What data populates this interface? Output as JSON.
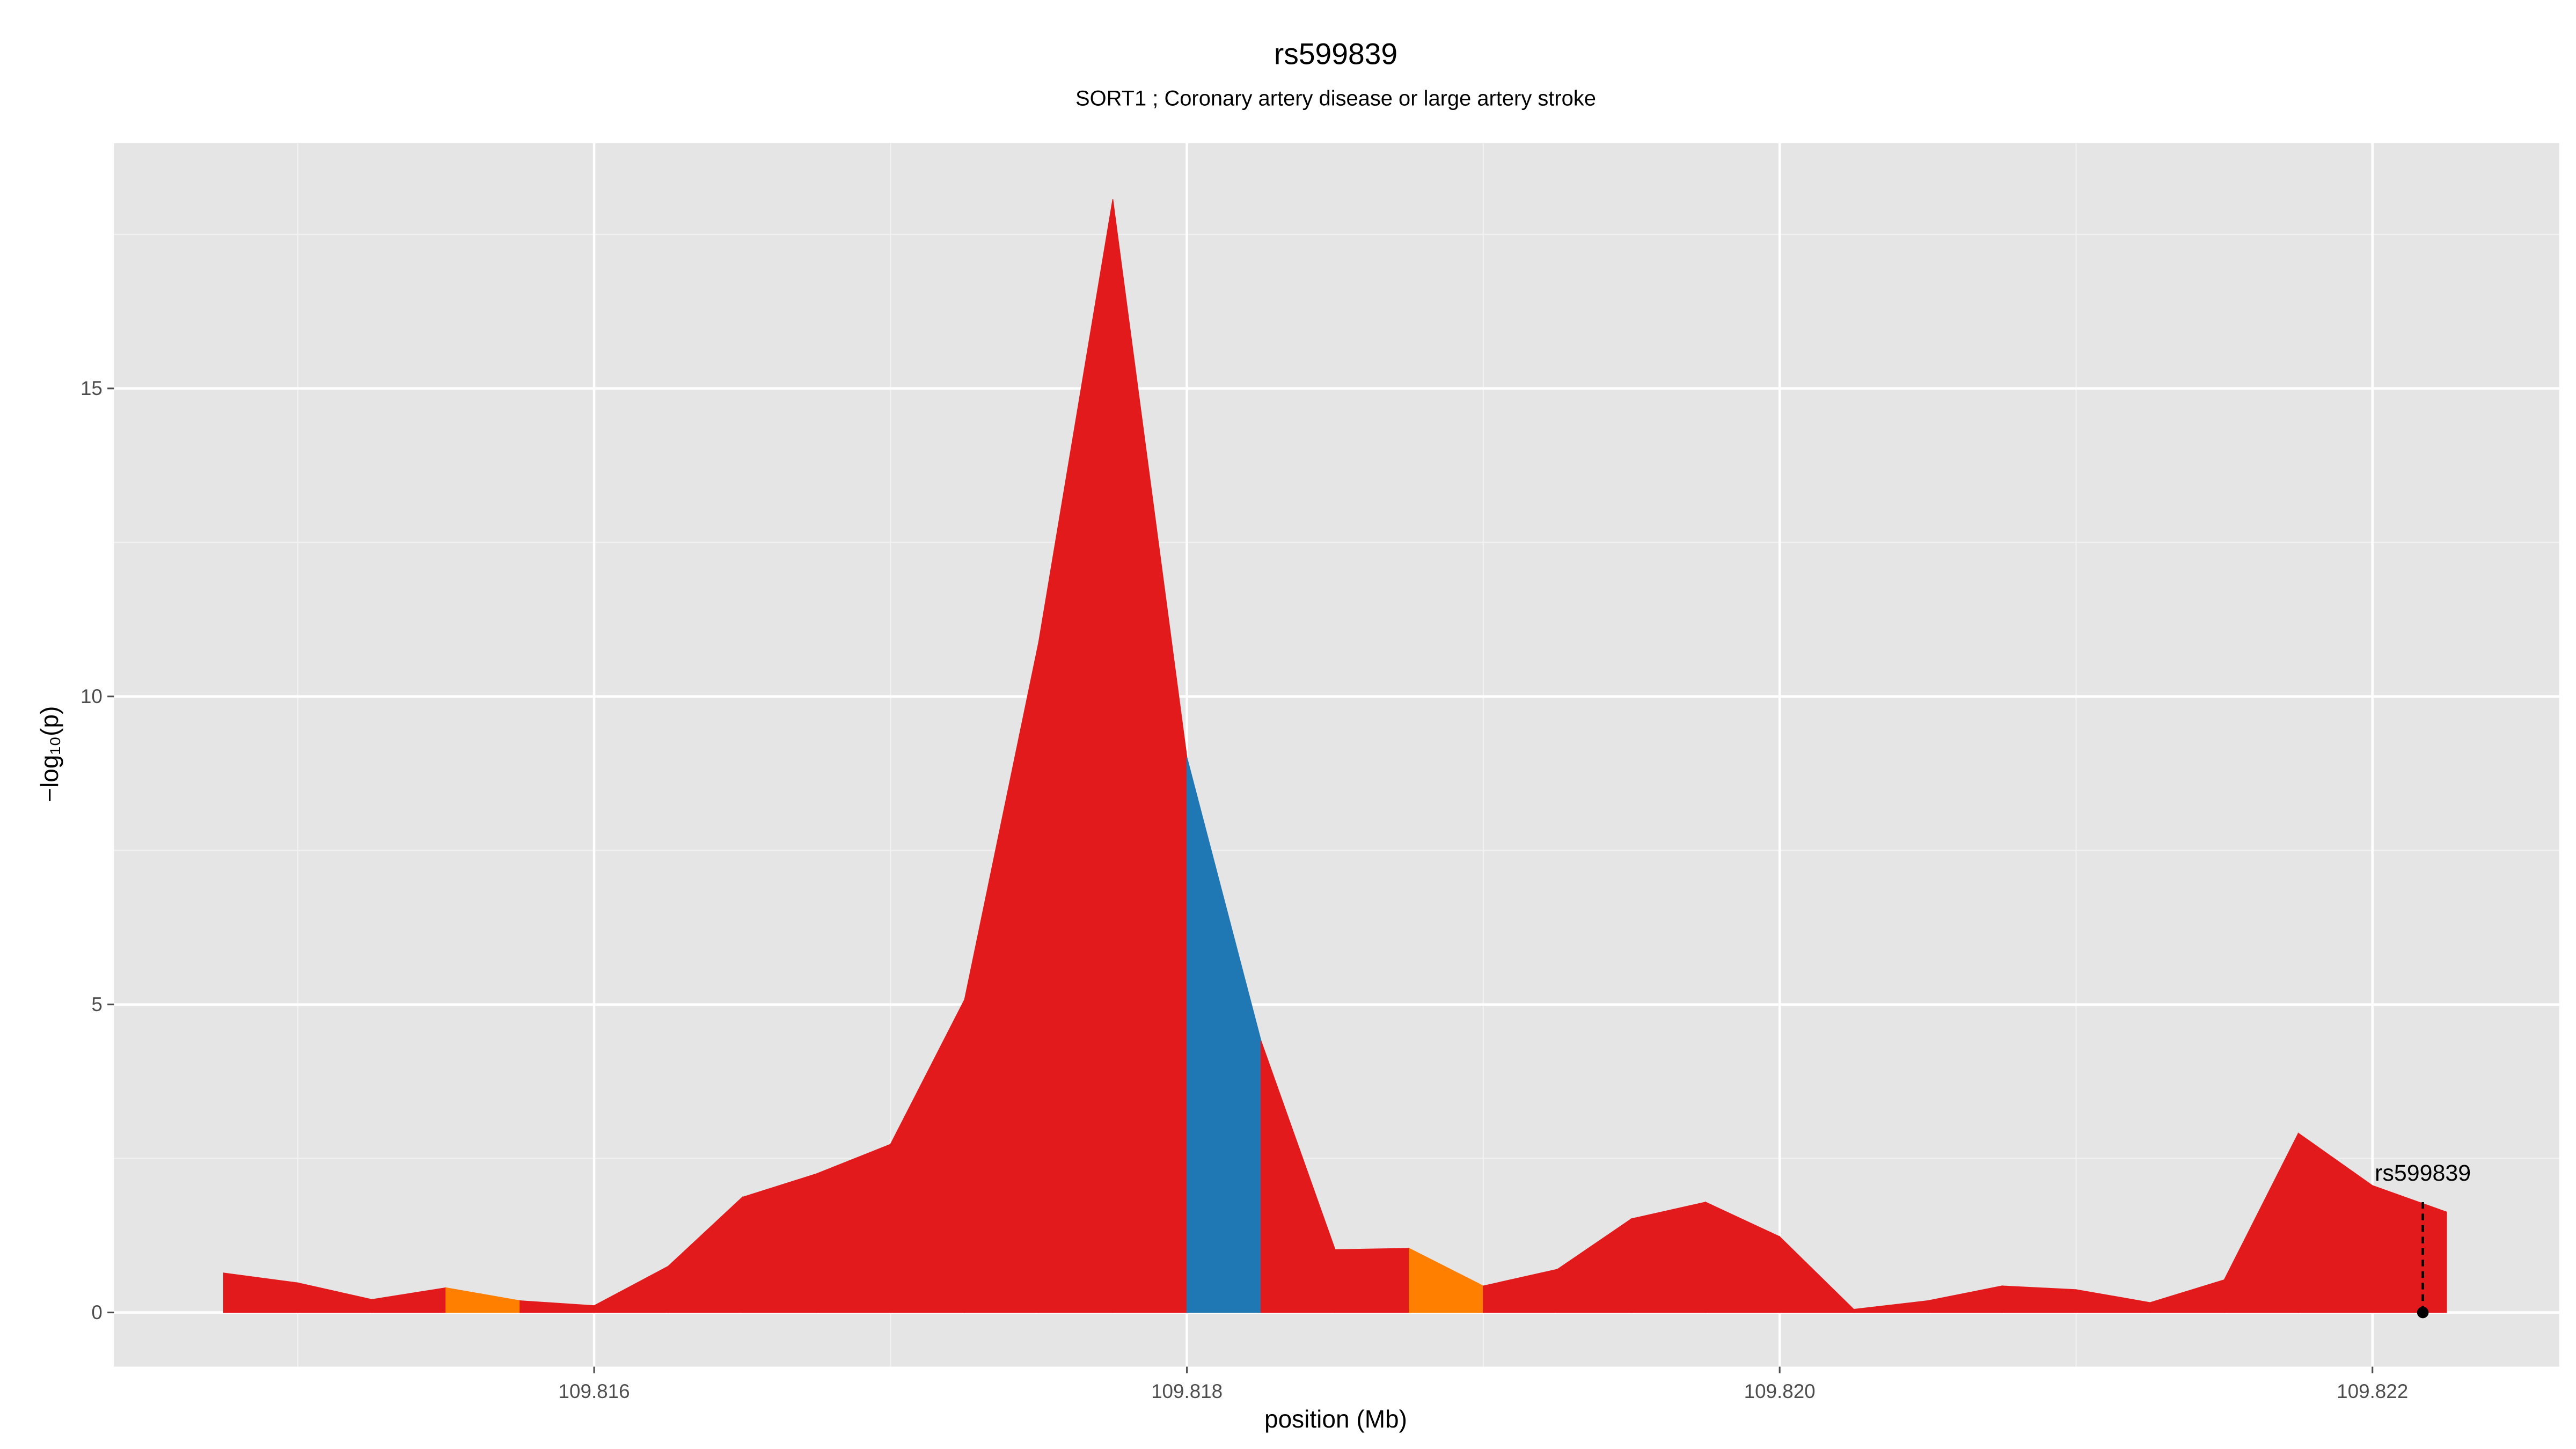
{
  "chart_data": {
    "type": "area",
    "title": "rs599839",
    "subtitle": "SORT1 ; Coronary artery disease or large artery stroke",
    "x_label": "position (Mb)",
    "y_label": "−log₁₀(p)",
    "x": [
      109.81475,
      109.815,
      109.81525,
      109.8155,
      109.81575,
      109.816,
      109.81625,
      109.8165,
      109.81675,
      109.817,
      109.81725,
      109.8175,
      109.81775,
      109.818,
      109.81825,
      109.8185,
      109.81875,
      109.819,
      109.81925,
      109.8195,
      109.81975,
      109.82,
      109.82025,
      109.8205,
      109.82075,
      109.821,
      109.82125,
      109.8215,
      109.82175,
      109.822,
      109.82225
    ],
    "y": [
      0.64,
      0.48,
      0.21,
      0.4,
      0.19,
      0.11,
      0.75,
      1.87,
      2.25,
      2.73,
      5.08,
      10.88,
      18.07,
      9.01,
      4.41,
      1.02,
      1.04,
      0.43,
      0.7,
      1.52,
      1.79,
      1.23,
      0.05,
      0.19,
      0.43,
      0.37,
      0.16,
      0.53,
      2.91,
      2.06,
      1.63
    ],
    "segment_colors": [
      "#e31a1c",
      "#e31a1c",
      "#e31a1c",
      "#ff7f00",
      "#e31a1c",
      "#e31a1c",
      "#e31a1c",
      "#e31a1c",
      "#e31a1c",
      "#e31a1c",
      "#e31a1c",
      "#e31a1c",
      "#e31a1c",
      "#1f78b4",
      "#e31a1c",
      "#e31a1c",
      "#ff7f00",
      "#e31a1c",
      "#e31a1c",
      "#e31a1c",
      "#e31a1c",
      "#e31a1c",
      "#e31a1c",
      "#e31a1c",
      "#e31a1c",
      "#e31a1c",
      "#e31a1c",
      "#e31a1c",
      "#e31a1c",
      "#e31a1c"
    ],
    "xlim": [
      109.81438,
      109.82263
    ],
    "ylim": [
      -0.88,
      18.98
    ],
    "xticks": [
      109.816,
      109.818,
      {
        "value": 109.82,
        "label": "109.820"
      },
      109.822
    ],
    "yticks": [
      0,
      5,
      10,
      15
    ],
    "grid": true,
    "annotation": {
      "text": "rs599839",
      "x": 109.82217,
      "y": 0
    }
  }
}
